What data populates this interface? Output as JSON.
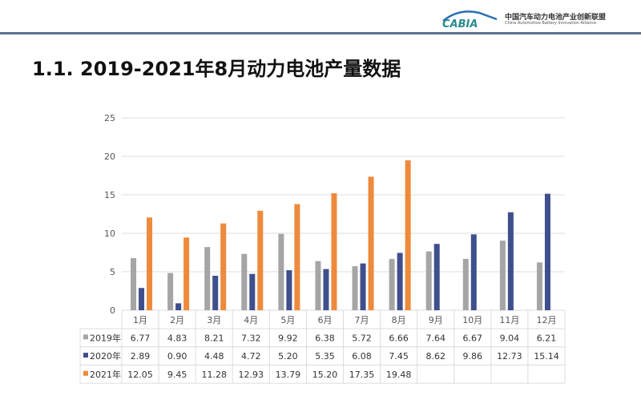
{
  "header": {
    "logo_text": "CABIA",
    "org_cn": "中国汽车动力电池产业创新联盟",
    "org_en": "China Automotive Battery Innovation Alliance"
  },
  "title": "1.1. 2019-2021年8月动力电池产量数据",
  "chart_data": {
    "type": "bar",
    "title": "2019-2021年8月动力电池产量数据",
    "categories": [
      "1月",
      "2月",
      "3月",
      "4月",
      "5月",
      "6月",
      "7月",
      "8月",
      "9月",
      "10月",
      "11月",
      "12月"
    ],
    "ylim": [
      0,
      25
    ],
    "yticks": [
      0,
      5,
      10,
      15,
      20,
      25
    ],
    "grid": true,
    "legend": "table-bottom",
    "series": [
      {
        "name": "2019年",
        "color": "#a5a5a5",
        "values": [
          6.77,
          4.83,
          8.21,
          7.32,
          9.92,
          6.38,
          5.72,
          6.66,
          7.64,
          6.67,
          9.04,
          6.21
        ]
      },
      {
        "name": "2020年",
        "color": "#3f4f8c",
        "values": [
          2.89,
          0.9,
          4.48,
          4.72,
          5.2,
          5.35,
          6.08,
          7.45,
          8.62,
          9.86,
          12.73,
          15.14
        ]
      },
      {
        "name": "2021年",
        "color": "#ed8a3c",
        "values": [
          12.05,
          9.45,
          11.28,
          12.93,
          13.79,
          15.2,
          17.35,
          19.48,
          null,
          null,
          null,
          null
        ]
      }
    ]
  }
}
